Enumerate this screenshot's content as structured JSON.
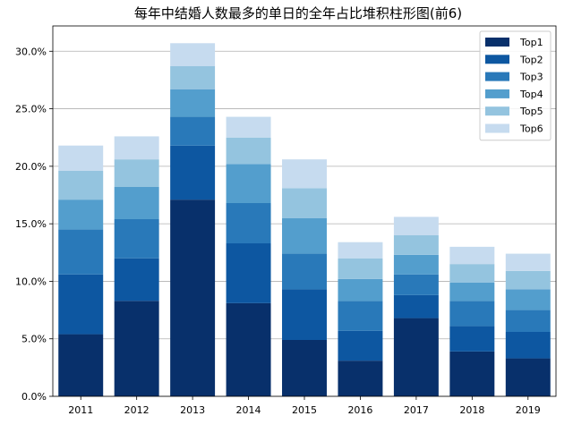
{
  "chart_data": {
    "type": "bar",
    "stacked": true,
    "title": "每年中结婚人数最多的单日的全年占比堆积柱形图(前6)",
    "xlabel": "",
    "ylabel": "",
    "categories": [
      "2011",
      "2012",
      "2013",
      "2014",
      "2015",
      "2016",
      "2017",
      "2018",
      "2019"
    ],
    "ylim": [
      0,
      0.322
    ],
    "yticks": [
      0,
      0.05,
      0.1,
      0.15,
      0.2,
      0.25,
      0.3
    ],
    "ytick_labels": [
      "0.0%",
      "5.0%",
      "10.0%",
      "15.0%",
      "20.0%",
      "25.0%",
      "30.0%"
    ],
    "grid": "horizontal",
    "legend_position": "top-right",
    "series": [
      {
        "name": "Top1",
        "color": "#08306b",
        "values": [
          0.054,
          0.083,
          0.171,
          0.081,
          0.049,
          0.031,
          0.068,
          0.039,
          0.033
        ]
      },
      {
        "name": "Top2",
        "color": "#0d57a1",
        "values": [
          0.052,
          0.037,
          0.047,
          0.052,
          0.044,
          0.026,
          0.02,
          0.022,
          0.023
        ]
      },
      {
        "name": "Top3",
        "color": "#2979b9",
        "values": [
          0.039,
          0.034,
          0.025,
          0.035,
          0.031,
          0.026,
          0.018,
          0.022,
          0.019
        ]
      },
      {
        "name": "Top4",
        "color": "#539ecd",
        "values": [
          0.026,
          0.028,
          0.024,
          0.034,
          0.031,
          0.019,
          0.017,
          0.016,
          0.018
        ]
      },
      {
        "name": "Top5",
        "color": "#94c4df",
        "values": [
          0.025,
          0.024,
          0.02,
          0.023,
          0.026,
          0.018,
          0.017,
          0.016,
          0.016
        ]
      },
      {
        "name": "Top6",
        "color": "#c6dbef",
        "values": [
          0.022,
          0.02,
          0.02,
          0.018,
          0.025,
          0.014,
          0.016,
          0.015,
          0.015
        ]
      }
    ]
  }
}
